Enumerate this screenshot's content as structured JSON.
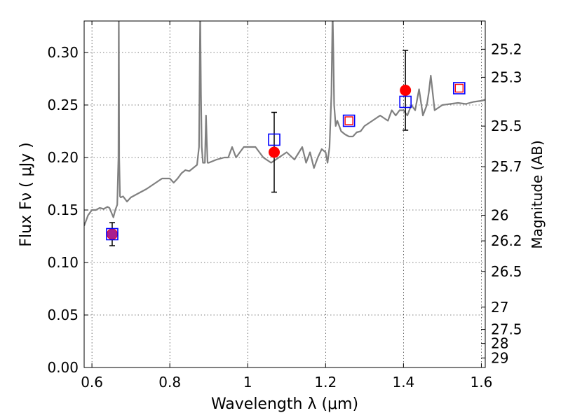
{
  "chart_data": {
    "type": "scatter",
    "xlabel": "Wavelength  λ (μm)",
    "ylabel_left": "Flux  Fν  ( μJy )",
    "ylabel_right": "Magnitude (AB)",
    "xlim": [
      0.58,
      1.61
    ],
    "ylim": [
      0.0,
      0.33
    ],
    "grid": true,
    "x_ticks": [
      0.6,
      0.8,
      1.0,
      1.2,
      1.4,
      1.6
    ],
    "x_tick_labels": [
      "0.6",
      "0.8",
      "1",
      "1.2",
      "1.4",
      "1.6"
    ],
    "y_ticks": [
      0.0,
      0.05,
      0.1,
      0.15,
      0.2,
      0.25,
      0.3
    ],
    "y_tick_labels": [
      "0.00",
      "0.05",
      "0.10",
      "0.15",
      "0.20",
      "0.25",
      "0.30"
    ],
    "right_ticks": [
      {
        "label": "25.2",
        "flux": 0.3031
      },
      {
        "label": "25.3",
        "flux": 0.2764
      },
      {
        "label": "25.5",
        "flux": 0.2299
      },
      {
        "label": "25.7",
        "flux": 0.1912
      },
      {
        "label": "26",
        "flux": 0.145
      },
      {
        "label": "26.2",
        "flux": 0.1206
      },
      {
        "label": "26.5",
        "flux": 0.0915
      },
      {
        "label": "27",
        "flux": 0.0575
      },
      {
        "label": "27.5",
        "flux": 0.0363
      },
      {
        "label": "28",
        "flux": 0.0229
      },
      {
        "label": "29",
        "flux": 0.0091
      }
    ],
    "series": [
      {
        "kind": "spectrum",
        "color": "#808080",
        "x": [
          0.58,
          0.59,
          0.6,
          0.61,
          0.62,
          0.63,
          0.64,
          0.645,
          0.655,
          0.66,
          0.665,
          0.668,
          0.669,
          0.67,
          0.672,
          0.674,
          0.68,
          0.69,
          0.7,
          0.72,
          0.74,
          0.76,
          0.78,
          0.8,
          0.81,
          0.82,
          0.83,
          0.84,
          0.85,
          0.86,
          0.87,
          0.875,
          0.878,
          0.88,
          0.882,
          0.885,
          0.89,
          0.893,
          0.895,
          0.897,
          0.9,
          0.92,
          0.94,
          0.95,
          0.96,
          0.97,
          0.98,
          0.99,
          1.0,
          1.02,
          1.04,
          1.06,
          1.08,
          1.1,
          1.12,
          1.14,
          1.15,
          1.16,
          1.17,
          1.18,
          1.19,
          1.2,
          1.205,
          1.21,
          1.215,
          1.218,
          1.22,
          1.222,
          1.226,
          1.23,
          1.24,
          1.25,
          1.26,
          1.27,
          1.28,
          1.29,
          1.3,
          1.32,
          1.34,
          1.36,
          1.37,
          1.38,
          1.39,
          1.4,
          1.41,
          1.42,
          1.43,
          1.44,
          1.45,
          1.455,
          1.46,
          1.465,
          1.47,
          1.48,
          1.5,
          1.52,
          1.54,
          1.56,
          1.58,
          1.6,
          1.61
        ],
        "y": [
          0.135,
          0.145,
          0.15,
          0.15,
          0.152,
          0.151,
          0.153,
          0.152,
          0.143,
          0.15,
          0.155,
          0.2,
          0.34,
          0.2,
          0.163,
          0.162,
          0.163,
          0.158,
          0.162,
          0.166,
          0.17,
          0.175,
          0.18,
          0.18,
          0.176,
          0.18,
          0.185,
          0.188,
          0.187,
          0.19,
          0.193,
          0.21,
          0.34,
          0.26,
          0.21,
          0.195,
          0.195,
          0.24,
          0.215,
          0.195,
          0.195,
          0.198,
          0.2,
          0.2,
          0.21,
          0.2,
          0.205,
          0.21,
          0.21,
          0.21,
          0.2,
          0.195,
          0.2,
          0.205,
          0.198,
          0.21,
          0.195,
          0.205,
          0.19,
          0.2,
          0.208,
          0.205,
          0.195,
          0.21,
          0.26,
          0.34,
          0.3,
          0.25,
          0.23,
          0.235,
          0.225,
          0.222,
          0.22,
          0.22,
          0.224,
          0.225,
          0.23,
          0.235,
          0.24,
          0.235,
          0.245,
          0.24,
          0.245,
          0.245,
          0.24,
          0.25,
          0.245,
          0.265,
          0.24,
          0.245,
          0.25,
          0.262,
          0.278,
          0.245,
          0.25,
          0.251,
          0.252,
          0.251,
          0.253,
          0.254,
          0.255
        ]
      },
      {
        "kind": "observed",
        "color": "#ff0000",
        "x": [
          0.652,
          1.068,
          1.405
        ],
        "y": [
          0.127,
          0.205,
          0.264
        ],
        "err": [
          0.011,
          0.038,
          0.038
        ]
      },
      {
        "kind": "model",
        "color": "#0000ff",
        "x": [
          0.652,
          1.068,
          1.26,
          1.405,
          1.543
        ],
        "y": [
          0.127,
          0.217,
          0.235,
          0.253,
          0.266
        ]
      },
      {
        "kind": "model-small",
        "color": "#ff0000",
        "x": [
          1.26,
          1.543
        ],
        "y": [
          0.235,
          0.266
        ]
      }
    ]
  }
}
